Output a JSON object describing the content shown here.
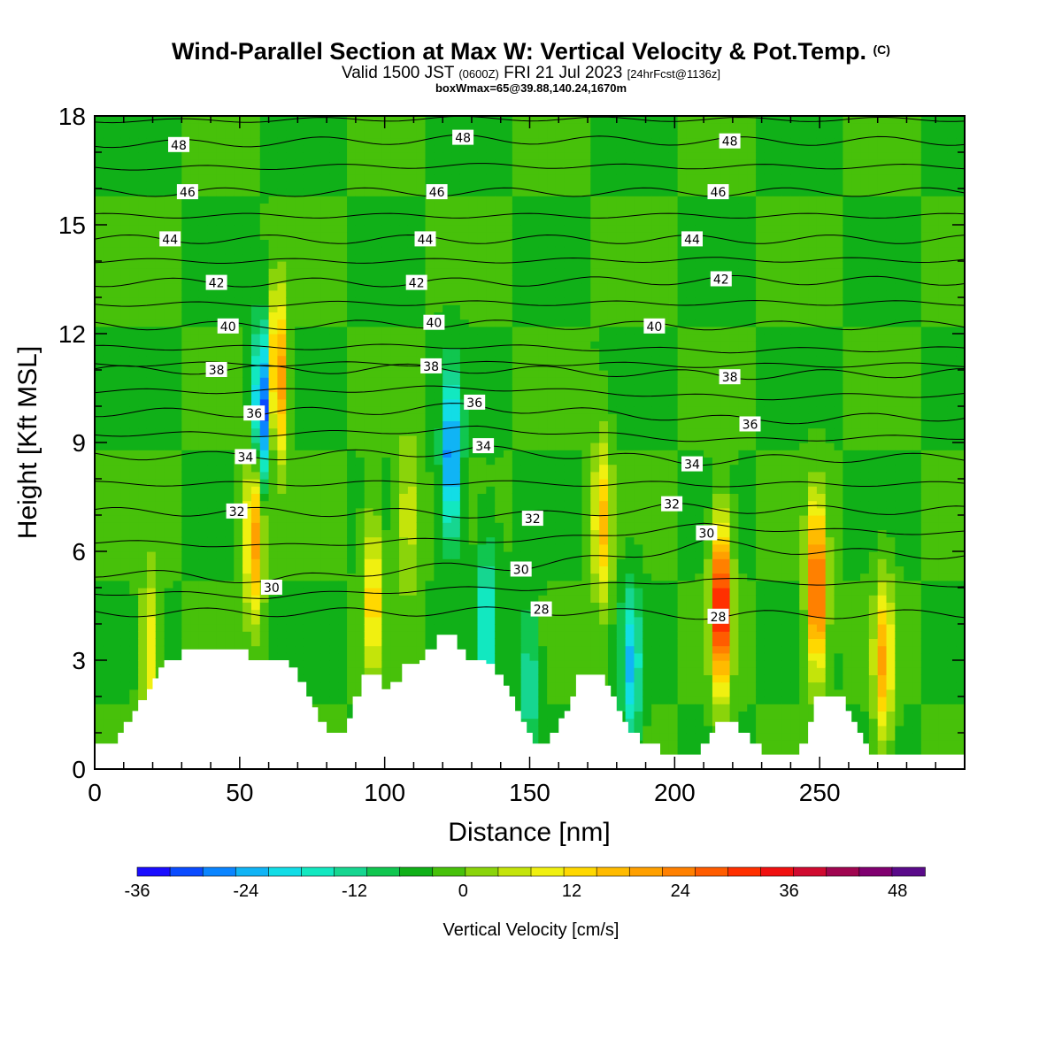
{
  "header": {
    "title": "Wind-Parallel Section at Max W: Vertical Velocity & Pot.Temp.",
    "copyright": "(C)",
    "valid_prefix": "Valid 1500 JST",
    "utc": "(0600Z)",
    "date": "FRI 21 Jul 2023",
    "forecast": "[24hrFcst@1136z]",
    "box_info": "boxWmax=65@39.88,140.24,1670m"
  },
  "chart_data": {
    "type": "heatmap",
    "title": "Wind-Parallel Section at Max W: Vertical Velocity & Pot.Temp.",
    "xlabel": "Distance [nm]",
    "ylabel": "Height [Kft MSL]",
    "xlim": [
      0,
      300
    ],
    "ylim": [
      0,
      18
    ],
    "x_ticks": [
      0,
      50,
      100,
      150,
      200,
      250
    ],
    "y_ticks": [
      0,
      3,
      6,
      9,
      12,
      15,
      18
    ],
    "colorbar": {
      "label": "Vertical Velocity [cm/s]",
      "min": -36,
      "max": 51,
      "step": 4,
      "tick_values": [
        -36,
        -24,
        -12,
        0,
        12,
        24,
        36,
        48
      ],
      "colors": [
        "#1a0dff",
        "#0a4bff",
        "#0a85ff",
        "#10b4f5",
        "#12dde6",
        "#12e8c0",
        "#16d690",
        "#10c64f",
        "#10b018",
        "#47c10a",
        "#8ad40a",
        "#c4e40a",
        "#f0f010",
        "#ffd800",
        "#ffbb00",
        "#ffa000",
        "#ff8000",
        "#ff5c00",
        "#ff3000",
        "#f01010",
        "#d00a30",
        "#a00550",
        "#800070",
        "#5a0a8a"
      ]
    },
    "velocity_features": [
      {
        "x": 19,
        "z": 3.2,
        "value": 16
      },
      {
        "x": 55,
        "z": 6.5,
        "value": 28
      },
      {
        "x": 63,
        "z": 10.8,
        "value": 34
      },
      {
        "x": 58,
        "z": 10.0,
        "value": -34
      },
      {
        "x": 96,
        "z": 4.8,
        "value": 20
      },
      {
        "x": 108,
        "z": 7.0,
        "value": 12
      },
      {
        "x": 123,
        "z": 8.6,
        "value": -30
      },
      {
        "x": 135,
        "z": 4.0,
        "value": -18
      },
      {
        "x": 150,
        "z": 2.5,
        "value": -12
      },
      {
        "x": 175,
        "z": 6.8,
        "value": 22
      },
      {
        "x": 185,
        "z": 2.8,
        "value": -20
      },
      {
        "x": 216,
        "z": 4.5,
        "value": 48
      },
      {
        "x": 249,
        "z": 5.0,
        "value": 40
      },
      {
        "x": 272,
        "z": 3.0,
        "value": 24
      }
    ],
    "contours": {
      "quantity": "Potential temperature",
      "unit": "C",
      "labels": [
        {
          "value": 48,
          "x": 29,
          "z": 17.2
        },
        {
          "value": 46,
          "x": 32,
          "z": 15.9
        },
        {
          "value": 44,
          "x": 26,
          "z": 14.6
        },
        {
          "value": 42,
          "x": 42,
          "z": 13.4
        },
        {
          "value": 40,
          "x": 46,
          "z": 12.2
        },
        {
          "value": 38,
          "x": 42,
          "z": 11.0
        },
        {
          "value": 36,
          "x": 55,
          "z": 9.8
        },
        {
          "value": 34,
          "x": 52,
          "z": 8.6
        },
        {
          "value": 32,
          "x": 49,
          "z": 7.1
        },
        {
          "value": 30,
          "x": 61,
          "z": 5.0
        },
        {
          "value": 48,
          "x": 127,
          "z": 17.4
        },
        {
          "value": 46,
          "x": 118,
          "z": 15.9
        },
        {
          "value": 44,
          "x": 114,
          "z": 14.6
        },
        {
          "value": 42,
          "x": 111,
          "z": 13.4
        },
        {
          "value": 40,
          "x": 117,
          "z": 12.3
        },
        {
          "value": 38,
          "x": 116,
          "z": 11.1
        },
        {
          "value": 36,
          "x": 131,
          "z": 10.1
        },
        {
          "value": 34,
          "x": 134,
          "z": 8.9
        },
        {
          "value": 32,
          "x": 151,
          "z": 6.9
        },
        {
          "value": 30,
          "x": 147,
          "z": 5.5
        },
        {
          "value": 28,
          "x": 154,
          "z": 4.4
        },
        {
          "value": 48,
          "x": 219,
          "z": 17.3
        },
        {
          "value": 46,
          "x": 215,
          "z": 15.9
        },
        {
          "value": 44,
          "x": 206,
          "z": 14.6
        },
        {
          "value": 42,
          "x": 216,
          "z": 13.5
        },
        {
          "value": 40,
          "x": 193,
          "z": 12.2
        },
        {
          "value": 38,
          "x": 219,
          "z": 10.8
        },
        {
          "value": 36,
          "x": 226,
          "z": 9.5
        },
        {
          "value": 34,
          "x": 206,
          "z": 8.4
        },
        {
          "value": 32,
          "x": 199,
          "z": 7.3
        },
        {
          "value": 30,
          "x": 211,
          "z": 6.5
        },
        {
          "value": 28,
          "x": 215,
          "z": 4.2
        }
      ]
    },
    "terrain": [
      [
        0,
        0.7
      ],
      [
        5,
        0.7
      ],
      [
        8,
        1.0
      ],
      [
        10,
        1.3
      ],
      [
        13,
        1.6
      ],
      [
        15,
        1.9
      ],
      [
        18,
        2.2
      ],
      [
        20,
        2.5
      ],
      [
        22,
        2.8
      ],
      [
        24,
        3.0
      ],
      [
        30,
        3.3
      ],
      [
        52,
        3.3
      ],
      [
        53,
        3.0
      ],
      [
        60,
        3.0
      ],
      [
        67,
        2.8
      ],
      [
        70,
        2.4
      ],
      [
        73,
        2.0
      ],
      [
        75,
        1.7
      ],
      [
        77,
        1.3
      ],
      [
        80,
        1.0
      ],
      [
        85,
        1.0
      ],
      [
        87,
        1.4
      ],
      [
        89,
        2.0
      ],
      [
        92,
        2.6
      ],
      [
        97,
        2.6
      ],
      [
        99,
        2.2
      ],
      [
        102,
        2.4
      ],
      [
        106,
        2.9
      ],
      [
        112,
        3.0
      ],
      [
        114,
        3.3
      ],
      [
        118,
        3.7
      ],
      [
        122,
        3.7
      ],
      [
        125,
        3.3
      ],
      [
        128,
        3.0
      ],
      [
        135,
        2.9
      ],
      [
        138,
        2.6
      ],
      [
        141,
        2.3
      ],
      [
        143,
        2.0
      ],
      [
        145,
        1.6
      ],
      [
        147,
        1.3
      ],
      [
        149,
        1.0
      ],
      [
        151,
        0.7
      ],
      [
        157,
        1.0
      ],
      [
        160,
        1.4
      ],
      [
        162,
        1.6
      ],
      [
        164,
        2.0
      ],
      [
        166,
        2.6
      ],
      [
        172,
        2.6
      ],
      [
        176,
        2.3
      ],
      [
        178,
        2.0
      ],
      [
        180,
        1.6
      ],
      [
        182,
        1.3
      ],
      [
        184,
        1.0
      ],
      [
        188,
        0.7
      ],
      [
        193,
        0.7
      ],
      [
        195,
        0.4
      ],
      [
        209,
        0.7
      ],
      [
        212,
        1.0
      ],
      [
        214,
        1.3
      ],
      [
        218,
        1.3
      ],
      [
        222,
        1.0
      ],
      [
        226,
        0.7
      ],
      [
        230,
        0.4
      ],
      [
        240,
        0.4
      ],
      [
        243,
        0.7
      ],
      [
        246,
        1.3
      ],
      [
        248,
        2.0
      ],
      [
        257,
        2.0
      ],
      [
        259,
        1.6
      ],
      [
        261,
        1.3
      ],
      [
        263,
        1.0
      ],
      [
        265,
        0.7
      ],
      [
        267,
        0.4
      ],
      [
        300,
        0.4
      ]
    ]
  }
}
